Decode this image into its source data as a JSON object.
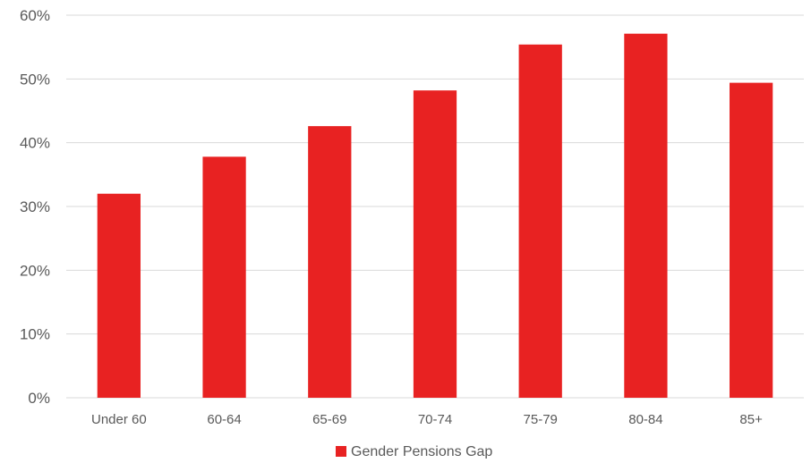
{
  "chart_data": {
    "type": "bar",
    "title": "",
    "xlabel": "",
    "ylabel": "",
    "categories": [
      "Under 60",
      "60-64",
      "65-69",
      "70-74",
      "75-79",
      "80-84",
      "85+"
    ],
    "series": [
      {
        "name": "Gender Pensions Gap",
        "values": [
          0.32,
          0.378,
          0.426,
          0.482,
          0.554,
          0.571,
          0.494
        ],
        "color": "#e82222"
      }
    ],
    "ylim": [
      0,
      0.6
    ],
    "yticks": [
      {
        "value": 0,
        "label": "0%"
      },
      {
        "value": 0.1,
        "label": "10%"
      },
      {
        "value": 0.2,
        "label": "20%"
      },
      {
        "value": 0.3,
        "label": "30%"
      },
      {
        "value": 0.4,
        "label": "40%"
      },
      {
        "value": 0.5,
        "label": "50%"
      },
      {
        "value": 0.6,
        "label": "60%"
      }
    ],
    "grid": true,
    "legend": {
      "position": "bottom",
      "label": "Gender Pensions Gap"
    }
  }
}
